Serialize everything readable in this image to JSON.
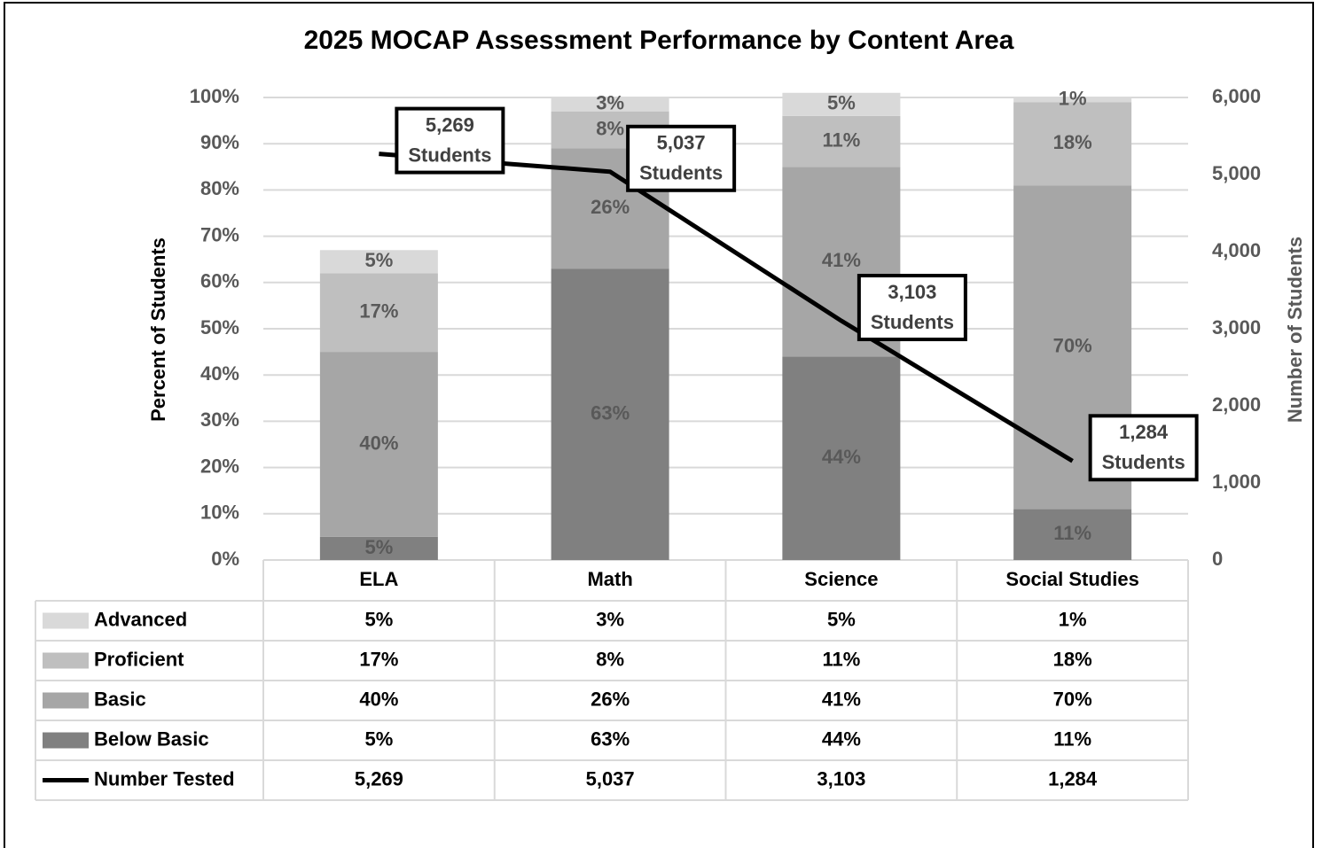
{
  "chart_data": {
    "type": "stacked_bar_line",
    "title": "2025 MOCAP Assessment Performance by Content Area",
    "y_axis_label": "Percent of Students",
    "y2_axis_label": "Number of Students",
    "categories": [
      "ELA",
      "Math",
      "Science",
      "Social Studies"
    ],
    "ylim": [
      0,
      100
    ],
    "yticks": [
      {
        "value": 0,
        "label": "0%"
      },
      {
        "value": 10,
        "label": "10%"
      },
      {
        "value": 20,
        "label": "20%"
      },
      {
        "value": 30,
        "label": "30%"
      },
      {
        "value": 40,
        "label": "40%"
      },
      {
        "value": 50,
        "label": "50%"
      },
      {
        "value": 60,
        "label": "60%"
      },
      {
        "value": 70,
        "label": "70%"
      },
      {
        "value": 80,
        "label": "80%"
      },
      {
        "value": 90,
        "label": "90%"
      },
      {
        "value": 100,
        "label": "100%"
      }
    ],
    "y2lim": [
      0,
      6000
    ],
    "y2ticks": [
      0,
      {
        "value": 1000,
        "label": "1,000"
      },
      {
        "value": 2000,
        "label": "2,000"
      },
      {
        "value": 3000,
        "label": "3,000"
      },
      {
        "value": 4000,
        "label": "4,000"
      },
      {
        "value": 5000,
        "label": "5,000"
      },
      {
        "value": 6000,
        "label": "6,000"
      }
    ],
    "grid": true,
    "data_table": true,
    "series": [
      {
        "name": "Advanced",
        "color": "#d9d9d9",
        "values": [
          5,
          3,
          5,
          1
        ],
        "value_labels": [
          "5%",
          "3%",
          "5%",
          "1%"
        ]
      },
      {
        "name": "Proficient",
        "color": "#bfbfbf",
        "values": [
          17,
          8,
          11,
          18
        ],
        "value_labels": [
          "17%",
          "8%",
          "11%",
          "18%"
        ]
      },
      {
        "name": "Basic",
        "color": "#a6a6a6",
        "values": [
          40,
          26,
          41,
          70
        ],
        "value_labels": [
          "40%",
          "26%",
          "41%",
          "70%"
        ]
      },
      {
        "name": "Below Basic",
        "color": "#808080",
        "values": [
          5,
          63,
          44,
          11
        ],
        "value_labels": [
          "5%",
          "63%",
          "44%",
          "11%"
        ]
      },
      {
        "name": "Number Tested",
        "color": "#000000",
        "type": "line",
        "axis": "y2",
        "values": [
          5269,
          5037,
          3103,
          1284
        ],
        "value_labels": [
          "5,269",
          "5,037",
          "3,103",
          "1,284"
        ],
        "data_label_unit": "Students"
      }
    ]
  }
}
